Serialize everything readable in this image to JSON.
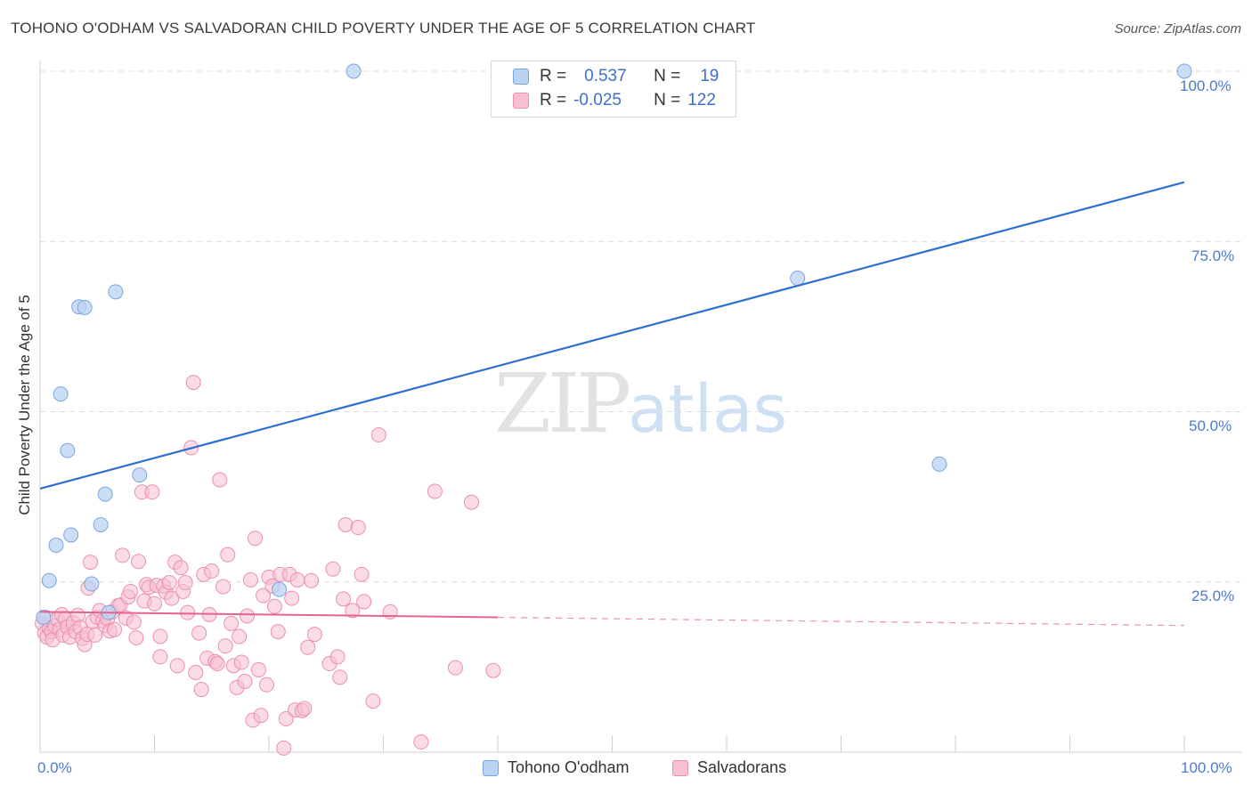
{
  "title": "TOHONO O'ODHAM VS SALVADORAN CHILD POVERTY UNDER THE AGE OF 5 CORRELATION CHART",
  "source": "Source: ZipAtlas.com",
  "watermark": {
    "zip": "ZIP",
    "atlas": "atlas"
  },
  "legend_top": {
    "rows": [
      {
        "r_label": "R =",
        "r_value": "0.537",
        "n_label": "N =",
        "n_value": "19"
      },
      {
        "r_label": "R =",
        "r_value": "-0.025",
        "n_label": "N =",
        "n_value": "122"
      }
    ]
  },
  "colors": {
    "blue_fill": "#b9d3f3",
    "blue_stroke": "#7aa6e0",
    "blue_line": "#2f6fcf",
    "pink_fill": "#f7c0d2",
    "pink_stroke": "#ec8fae",
    "pink_line": "#e8628f",
    "grid": "#dcdcdc",
    "axis_tick": "#4a7bd0"
  },
  "chart_data": {
    "type": "scatter",
    "title": "TOHONO O'ODHAM VS SALVADORAN CHILD POVERTY UNDER THE AGE OF 5 CORRELATION CHART",
    "xlabel": "",
    "ylabel": "Child Poverty Under the Age of 5",
    "xlim": [
      0,
      100
    ],
    "ylim": [
      0,
      100
    ],
    "x_tick_labels": [
      "0.0%",
      "100.0%"
    ],
    "y_tick_labels": [
      "25.0%",
      "50.0%",
      "75.0%",
      "100.0%"
    ],
    "y_ticks": [
      25,
      50,
      75,
      100
    ],
    "legend_position": "bottom-center",
    "series": [
      {
        "name": "Tohono O'odham",
        "R": 0.537,
        "N": 19,
        "trend": {
          "x0": 0,
          "y0": 38.7,
          "x1": 100,
          "y1": 83.7,
          "dashed_from": null
        },
        "points": [
          [
            0.3,
            19.8
          ],
          [
            0.8,
            25.2
          ],
          [
            1.4,
            30.4
          ],
          [
            1.8,
            52.6
          ],
          [
            2.4,
            44.3
          ],
          [
            2.7,
            31.9
          ],
          [
            3.4,
            65.4
          ],
          [
            3.9,
            65.3
          ],
          [
            4.5,
            24.7
          ],
          [
            5.3,
            33.4
          ],
          [
            5.7,
            37.9
          ],
          [
            6.6,
            67.6
          ],
          [
            8.7,
            40.7
          ],
          [
            20.9,
            23.9
          ],
          [
            27.4,
            100.0
          ],
          [
            66.2,
            69.6
          ],
          [
            78.6,
            42.3
          ],
          [
            100.0,
            100.0
          ],
          [
            6.0,
            20.5
          ]
        ]
      },
      {
        "name": "Salvadorans",
        "R": -0.025,
        "N": 122,
        "trend": {
          "x0": 0,
          "y0": 20.6,
          "x1": 100,
          "y1": 18.6,
          "dashed_from": 40
        },
        "points": [
          [
            0.2,
            18.9
          ],
          [
            0.4,
            17.5
          ],
          [
            0.5,
            19.8
          ],
          [
            0.6,
            16.9
          ],
          [
            0.8,
            18.2
          ],
          [
            1.0,
            17.7
          ],
          [
            1.1,
            16.5
          ],
          [
            1.3,
            18.5
          ],
          [
            1.5,
            19.5
          ],
          [
            1.7,
            18.0
          ],
          [
            1.9,
            20.2
          ],
          [
            2.0,
            17.2
          ],
          [
            2.2,
            19.6
          ],
          [
            2.4,
            18.4
          ],
          [
            2.6,
            16.9
          ],
          [
            2.9,
            19.0
          ],
          [
            3.1,
            17.7
          ],
          [
            3.3,
            20.1
          ],
          [
            3.5,
            18.3
          ],
          [
            3.7,
            16.7
          ],
          [
            3.9,
            15.8
          ],
          [
            4.1,
            17.3
          ],
          [
            4.2,
            24.1
          ],
          [
            4.4,
            27.9
          ],
          [
            4.6,
            19.2
          ],
          [
            4.8,
            17.2
          ],
          [
            5.0,
            19.8
          ],
          [
            5.2,
            20.8
          ],
          [
            5.5,
            19.3
          ],
          [
            5.7,
            18.6
          ],
          [
            5.9,
            19.6
          ],
          [
            6.1,
            17.8
          ],
          [
            6.3,
            20.6
          ],
          [
            6.5,
            18.0
          ],
          [
            6.8,
            21.5
          ],
          [
            7.0,
            21.6
          ],
          [
            7.2,
            28.9
          ],
          [
            7.5,
            19.7
          ],
          [
            7.7,
            22.8
          ],
          [
            7.9,
            23.6
          ],
          [
            8.2,
            19.1
          ],
          [
            8.4,
            16.8
          ],
          [
            8.6,
            28.0
          ],
          [
            8.9,
            38.2
          ],
          [
            9.1,
            22.2
          ],
          [
            9.3,
            24.6
          ],
          [
            9.5,
            24.2
          ],
          [
            9.8,
            38.2
          ],
          [
            10.0,
            21.8
          ],
          [
            10.2,
            24.5
          ],
          [
            10.5,
            14.0
          ],
          [
            10.5,
            17.0
          ],
          [
            10.8,
            24.4
          ],
          [
            11.0,
            23.5
          ],
          [
            11.3,
            24.9
          ],
          [
            11.5,
            22.6
          ],
          [
            11.8,
            27.9
          ],
          [
            12.0,
            12.7
          ],
          [
            12.3,
            27.1
          ],
          [
            12.5,
            23.6
          ],
          [
            12.7,
            24.9
          ],
          [
            12.9,
            20.5
          ],
          [
            13.2,
            44.7
          ],
          [
            13.4,
            54.3
          ],
          [
            13.6,
            11.7
          ],
          [
            13.9,
            17.5
          ],
          [
            14.1,
            9.2
          ],
          [
            14.3,
            26.1
          ],
          [
            14.6,
            13.8
          ],
          [
            14.8,
            20.2
          ],
          [
            15.0,
            26.6
          ],
          [
            15.3,
            13.3
          ],
          [
            15.5,
            13.0
          ],
          [
            15.7,
            40.0
          ],
          [
            16.0,
            24.3
          ],
          [
            16.2,
            15.6
          ],
          [
            16.4,
            29.0
          ],
          [
            16.7,
            18.9
          ],
          [
            16.9,
            12.7
          ],
          [
            17.2,
            9.5
          ],
          [
            17.4,
            17.0
          ],
          [
            17.6,
            13.2
          ],
          [
            17.9,
            10.4
          ],
          [
            18.1,
            20.0
          ],
          [
            18.4,
            25.3
          ],
          [
            18.6,
            4.7
          ],
          [
            18.8,
            31.4
          ],
          [
            19.1,
            12.1
          ],
          [
            19.3,
            5.4
          ],
          [
            19.5,
            23.0
          ],
          [
            19.8,
            9.9
          ],
          [
            20.0,
            25.7
          ],
          [
            20.3,
            24.4
          ],
          [
            20.5,
            21.4
          ],
          [
            20.8,
            17.7
          ],
          [
            21.0,
            26.1
          ],
          [
            21.3,
            0.6
          ],
          [
            21.5,
            4.9
          ],
          [
            21.8,
            26.1
          ],
          [
            22.0,
            22.6
          ],
          [
            22.3,
            6.2
          ],
          [
            22.5,
            25.3
          ],
          [
            22.9,
            6.1
          ],
          [
            23.1,
            6.4
          ],
          [
            23.4,
            15.4
          ],
          [
            23.7,
            25.2
          ],
          [
            24.0,
            17.3
          ],
          [
            25.3,
            13.0
          ],
          [
            25.6,
            26.9
          ],
          [
            26.0,
            14.0
          ],
          [
            26.2,
            11.0
          ],
          [
            26.5,
            22.5
          ],
          [
            26.7,
            33.4
          ],
          [
            27.3,
            20.8
          ],
          [
            27.8,
            33.0
          ],
          [
            28.1,
            26.1
          ],
          [
            28.3,
            22.1
          ],
          [
            29.1,
            7.5
          ],
          [
            29.6,
            46.6
          ],
          [
            30.6,
            20.6
          ],
          [
            33.3,
            1.5
          ],
          [
            34.5,
            38.3
          ],
          [
            36.3,
            12.4
          ],
          [
            37.7,
            36.7
          ],
          [
            39.6,
            12.0
          ]
        ]
      }
    ]
  }
}
